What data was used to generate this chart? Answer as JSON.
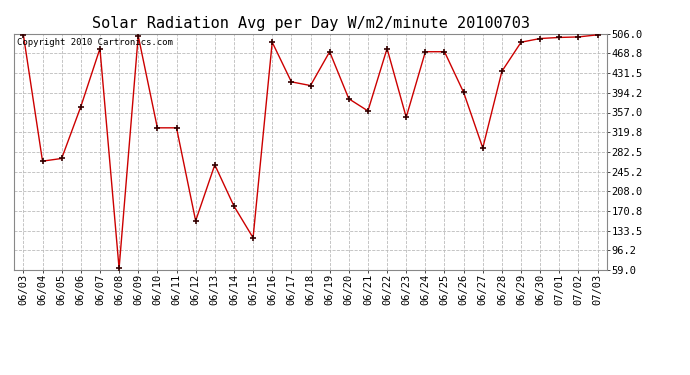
{
  "title": "Solar Radiation Avg per Day W/m2/minute 20100703",
  "copyright": "Copyright 2010 Cartronics.com",
  "x_labels": [
    "06/03",
    "06/04",
    "06/05",
    "06/06",
    "06/07",
    "06/08",
    "06/09",
    "06/10",
    "06/11",
    "06/12",
    "06/13",
    "06/14",
    "06/15",
    "06/16",
    "06/17",
    "06/18",
    "06/19",
    "06/20",
    "06/21",
    "06/22",
    "06/23",
    "06/24",
    "06/25",
    "06/26",
    "06/27",
    "06/28",
    "06/29",
    "06/30",
    "07/01",
    "07/02",
    "07/03"
  ],
  "y_values": [
    504.0,
    265.0,
    270.0,
    368.0,
    478.0,
    62.0,
    502.0,
    328.0,
    328.0,
    152.0,
    258.0,
    180.0,
    120.0,
    490.0,
    415.0,
    408.0,
    472.0,
    383.0,
    360.0,
    478.0,
    348.0,
    472.0,
    472.0,
    395.0,
    290.0,
    435.0,
    490.0,
    497.0,
    499.0,
    500.0,
    504.0
  ],
  "y_ticks": [
    59.0,
    96.2,
    133.5,
    170.8,
    208.0,
    245.2,
    282.5,
    319.8,
    357.0,
    394.2,
    431.5,
    468.8,
    506.0
  ],
  "y_min": 59.0,
  "y_max": 506.0,
  "line_color": "#cc0000",
  "marker_color": "#330000",
  "bg_color": "#ffffff",
  "grid_color": "#bbbbbb",
  "title_fontsize": 11,
  "tick_fontsize": 7.5,
  "copyright_fontsize": 6.5
}
